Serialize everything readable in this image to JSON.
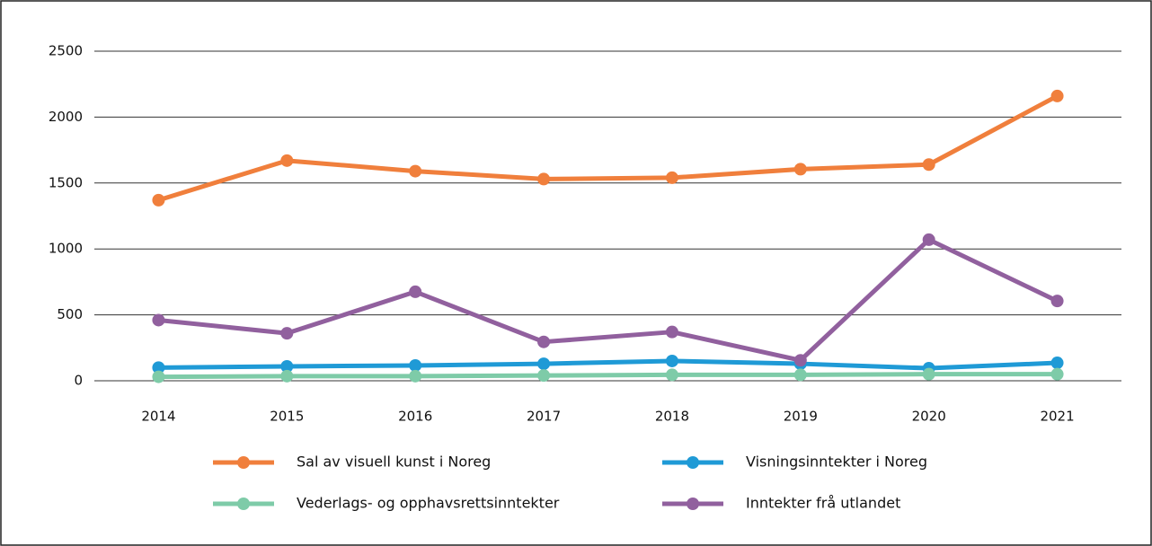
{
  "chart_data": {
    "type": "line",
    "categories": [
      "2014",
      "2015",
      "2016",
      "2017",
      "2018",
      "2019",
      "2020",
      "2021"
    ],
    "series": [
      {
        "name": "Sal av visuell kunst i Noreg",
        "color": "#f07f3c",
        "values": [
          1370,
          1670,
          1590,
          1530,
          1540,
          1605,
          1640,
          2160
        ]
      },
      {
        "name": "Visningsinntekter i Noreg",
        "color": "#1f9ad6",
        "values": [
          100,
          109,
          116,
          129,
          150,
          129,
          95,
          136
        ]
      },
      {
        "name": "Vederlags- og opphavsrettsinntekter",
        "color": "#7ecba8",
        "values": [
          30,
          35,
          35,
          40,
          45,
          45,
          50,
          50
        ]
      },
      {
        "name": "Inntekter frå utlandet",
        "color": "#91609e",
        "values": [
          460,
          360,
          675,
          295,
          370,
          155,
          1070,
          605
        ]
      }
    ],
    "ylim": [
      0,
      2500
    ],
    "yticks": [
      0,
      500,
      1000,
      1500,
      2000,
      2500
    ],
    "grid": true
  }
}
